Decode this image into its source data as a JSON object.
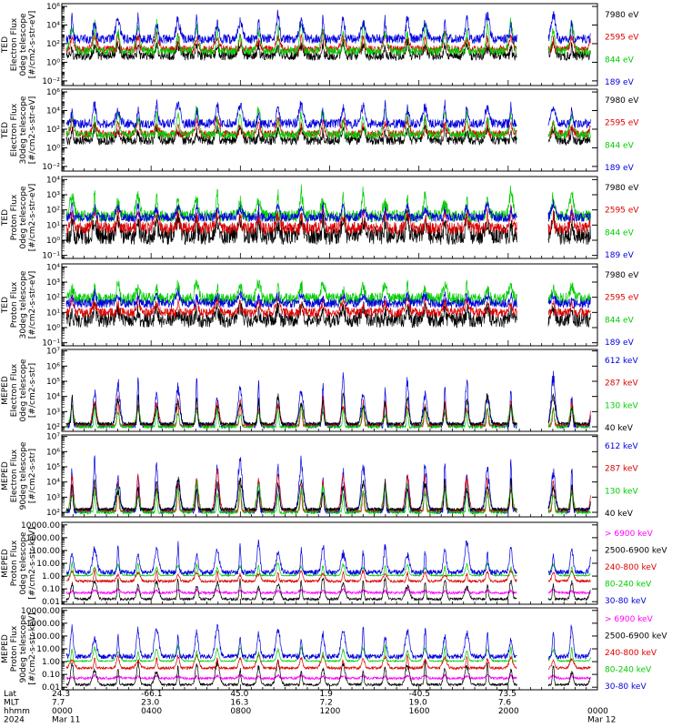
{
  "chart_data": {
    "type": "line",
    "time_axis": {
      "rows": [
        {
          "label": "Lat",
          "values": [
            "24.3",
            "-66.1",
            "45.0",
            "1.9",
            "-40.5",
            "73.5"
          ]
        },
        {
          "label": "MLT",
          "values": [
            "7.7",
            "23.0",
            "16.3",
            "7.2",
            "19.0",
            "7.6"
          ]
        },
        {
          "label": "hhmm",
          "values": [
            "0000",
            "0400",
            "0800",
            "1200",
            "1600",
            "2000",
            "0000"
          ]
        },
        {
          "label": "2024",
          "values": [
            "Mar 11",
            "",
            "",
            "",
            "",
            "",
            "Mar 12"
          ]
        }
      ],
      "x_range_hours": [
        0,
        24
      ],
      "data_gap_hours": [
        20.4,
        21.8
      ]
    },
    "panels": [
      {
        "ylabel_lines": [
          "TED",
          "Electron Flux",
          "0deg telescope",
          "[#/cm2-s-str-eV]"
        ],
        "scale": "log",
        "tick_labels": [
          "10⁻²",
          "10⁰",
          "10²",
          "10⁴",
          "10⁶"
        ],
        "tick_exponents": [
          -2,
          0,
          2,
          4,
          6
        ],
        "ylim_exp": [
          -2.5,
          6.3
        ],
        "series": [
          {
            "name": "7980 eV",
            "color": "#000000",
            "base_exp": 0.7,
            "peak_exp": 2.4,
            "noise": 0.5
          },
          {
            "name": "2595 eV",
            "color": "#dd0000",
            "base_exp": 1.4,
            "peak_exp": 3.5,
            "noise": 0.4
          },
          {
            "name": "844 eV",
            "color": "#00cc00",
            "base_exp": 1.2,
            "peak_exp": 4.8,
            "noise": 0.4
          },
          {
            "name": "189 eV",
            "color": "#0000dd",
            "base_exp": 2.5,
            "peak_exp": 5.6,
            "noise": 0.5
          }
        ]
      },
      {
        "ylabel_lines": [
          "TED",
          "Electron Flux",
          "30deg telescope",
          "[#/cm2-s-str-eV]"
        ],
        "scale": "log",
        "tick_labels": [
          "10⁻²",
          "10⁰",
          "10²",
          "10⁴",
          "10⁶"
        ],
        "tick_exponents": [
          -2,
          0,
          2,
          4,
          6
        ],
        "ylim_exp": [
          -2.5,
          6.3
        ],
        "series": [
          {
            "name": "7980 eV",
            "color": "#000000",
            "base_exp": 0.8,
            "peak_exp": 2.5,
            "noise": 0.5
          },
          {
            "name": "2595 eV",
            "color": "#dd0000",
            "base_exp": 1.5,
            "peak_exp": 3.4,
            "noise": 0.4
          },
          {
            "name": "844 eV",
            "color": "#00cc00",
            "base_exp": 1.4,
            "peak_exp": 4.7,
            "noise": 0.4
          },
          {
            "name": "189 eV",
            "color": "#0000dd",
            "base_exp": 2.6,
            "peak_exp": 5.3,
            "noise": 0.5
          }
        ]
      },
      {
        "ylabel_lines": [
          "TED",
          "Proton Flux",
          "0deg telescope",
          "[#/cm2-s-str-eV]"
        ],
        "scale": "log",
        "tick_labels": [
          "10⁻¹",
          "10⁰",
          "10¹",
          "10²",
          "10³",
          "10⁴"
        ],
        "tick_exponents": [
          -1,
          0,
          1,
          2,
          3,
          4
        ],
        "ylim_exp": [
          -1.2,
          4.2
        ],
        "series": [
          {
            "name": "7980 eV",
            "color": "#000000",
            "base_exp": 0.3,
            "peak_exp": 1.8,
            "noise": 0.6
          },
          {
            "name": "2595 eV",
            "color": "#dd0000",
            "base_exp": 0.8,
            "peak_exp": 2.3,
            "noise": 0.4
          },
          {
            "name": "844 eV",
            "color": "#00cc00",
            "base_exp": 1.6,
            "peak_exp": 3.4,
            "noise": 0.4
          },
          {
            "name": "189 eV",
            "color": "#0000dd",
            "base_exp": 1.5,
            "peak_exp": 2.5,
            "noise": 0.3
          }
        ]
      },
      {
        "ylabel_lines": [
          "TED",
          "Proton Flux",
          "30deg telescope",
          "[#/cm2-s-str-eV]"
        ],
        "scale": "log",
        "tick_labels": [
          "10⁻¹",
          "10⁰",
          "10¹",
          "10²",
          "10³",
          "10⁴"
        ],
        "tick_exponents": [
          -1,
          0,
          1,
          2,
          3,
          4
        ],
        "ylim_exp": [
          -1.2,
          4.2
        ],
        "series": [
          {
            "name": "7980 eV",
            "color": "#000000",
            "base_exp": 0.5,
            "peak_exp": 1.6,
            "noise": 0.5
          },
          {
            "name": "2595 eV",
            "color": "#dd0000",
            "base_exp": 1.0,
            "peak_exp": 2.1,
            "noise": 0.3
          },
          {
            "name": "844 eV",
            "color": "#00cc00",
            "base_exp": 1.9,
            "peak_exp": 3.2,
            "noise": 0.4
          },
          {
            "name": "189 eV",
            "color": "#0000dd",
            "base_exp": 1.6,
            "peak_exp": 2.4,
            "noise": 0.3
          }
        ]
      },
      {
        "ylabel_lines": [
          "MEPED",
          "Electron Flux",
          "0deg telescope",
          "[#/cm2-s-str]"
        ],
        "scale": "log",
        "tick_labels": [
          "10²",
          "10³",
          "10⁴",
          "10⁵",
          "10⁶",
          "10⁷"
        ],
        "tick_exponents": [
          2,
          3,
          4,
          5,
          6,
          7
        ],
        "ylim_exp": [
          1.7,
          7.1
        ],
        "series": [
          {
            "name": "612 keV",
            "color": "#0000dd",
            "base_exp": 2.1,
            "peak_exp": 5.8,
            "noise": 0.2
          },
          {
            "name": "287 keV",
            "color": "#dd0000",
            "base_exp": 2.1,
            "peak_exp": 4.2,
            "noise": 0.1
          },
          {
            "name": "130 keV",
            "color": "#00cc00",
            "base_exp": 2.0,
            "peak_exp": 3.6,
            "noise": 0.1
          },
          {
            "name": "40 keV",
            "color": "#000000",
            "base_exp": 2.2,
            "peak_exp": 4.4,
            "noise": 0.1
          }
        ]
      },
      {
        "ylabel_lines": [
          "MEPED",
          "Electron Flux",
          "90deg telescope",
          "[#/cm2-s-str]"
        ],
        "scale": "log",
        "tick_labels": [
          "10²",
          "10³",
          "10⁴",
          "10⁵",
          "10⁶",
          "10⁷"
        ],
        "tick_exponents": [
          2,
          3,
          4,
          5,
          6,
          7
        ],
        "ylim_exp": [
          1.7,
          7.1
        ],
        "series": [
          {
            "name": "612 keV",
            "color": "#0000dd",
            "base_exp": 2.1,
            "peak_exp": 6.0,
            "noise": 0.2
          },
          {
            "name": "287 keV",
            "color": "#dd0000",
            "base_exp": 2.1,
            "peak_exp": 5.0,
            "noise": 0.1
          },
          {
            "name": "130 keV",
            "color": "#00cc00",
            "base_exp": 2.0,
            "peak_exp": 4.2,
            "noise": 0.1
          },
          {
            "name": "40 keV",
            "color": "#000000",
            "base_exp": 2.2,
            "peak_exp": 4.6,
            "noise": 0.1
          }
        ]
      },
      {
        "ylabel_lines": [
          "MEPED",
          "Proton Flux",
          "0deg telescope",
          "[#/cm2-s-str-keV]"
        ],
        "scale": "log",
        "tick_labels": [
          "0.01",
          "0.10",
          "1.00",
          "10.00",
          "100.00",
          "1000.00",
          "10000.00"
        ],
        "tick_exponents": [
          -2,
          -1,
          0,
          1,
          2,
          3,
          4
        ],
        "ylim_exp": [
          -2.2,
          4.2
        ],
        "series": [
          {
            "name": "> 6900 keV",
            "color": "#ff00ff",
            "base_exp": -1.3,
            "peak_exp": -1.0,
            "noise": 0.1
          },
          {
            "name": "2500-6900 keV",
            "color": "#000000",
            "base_exp": -1.8,
            "peak_exp": 0.2,
            "noise": 0.1
          },
          {
            "name": "240-800 keV",
            "color": "#dd0000",
            "base_exp": -0.4,
            "peak_exp": 0.6,
            "noise": 0.1
          },
          {
            "name": "80-240 keV",
            "color": "#00cc00",
            "base_exp": 0.05,
            "peak_exp": 1.2,
            "noise": 0.05
          },
          {
            "name": "30-80 keV",
            "color": "#0000dd",
            "base_exp": 0.3,
            "peak_exp": 3.0,
            "noise": 0.2
          }
        ]
      },
      {
        "ylabel_lines": [
          "MEPED",
          "Proton Flux",
          "90deg telescope",
          "[#/cm2-s-str-keV]"
        ],
        "scale": "log",
        "tick_labels": [
          "0.01",
          "0.10",
          "1.00",
          "10.00",
          "100.00",
          "1000.00",
          "10000.00"
        ],
        "tick_exponents": [
          -2,
          -1,
          0,
          1,
          2,
          3,
          4
        ],
        "ylim_exp": [
          -2.2,
          4.2
        ],
        "series": [
          {
            "name": "> 6900 keV",
            "color": "#ff00ff",
            "base_exp": -1.3,
            "peak_exp": -1.0,
            "noise": 0.1
          },
          {
            "name": "2500-6900 keV",
            "color": "#000000",
            "base_exp": -1.8,
            "peak_exp": 0.3,
            "noise": 0.1
          },
          {
            "name": "240-800 keV",
            "color": "#dd0000",
            "base_exp": -0.5,
            "peak_exp": 0.7,
            "noise": 0.1
          },
          {
            "name": "80-240 keV",
            "color": "#00cc00",
            "base_exp": 0.05,
            "peak_exp": 1.4,
            "noise": 0.05
          },
          {
            "name": "30-80 keV",
            "color": "#0000dd",
            "base_exp": 0.4,
            "peak_exp": 3.2,
            "noise": 0.2
          }
        ]
      }
    ]
  }
}
